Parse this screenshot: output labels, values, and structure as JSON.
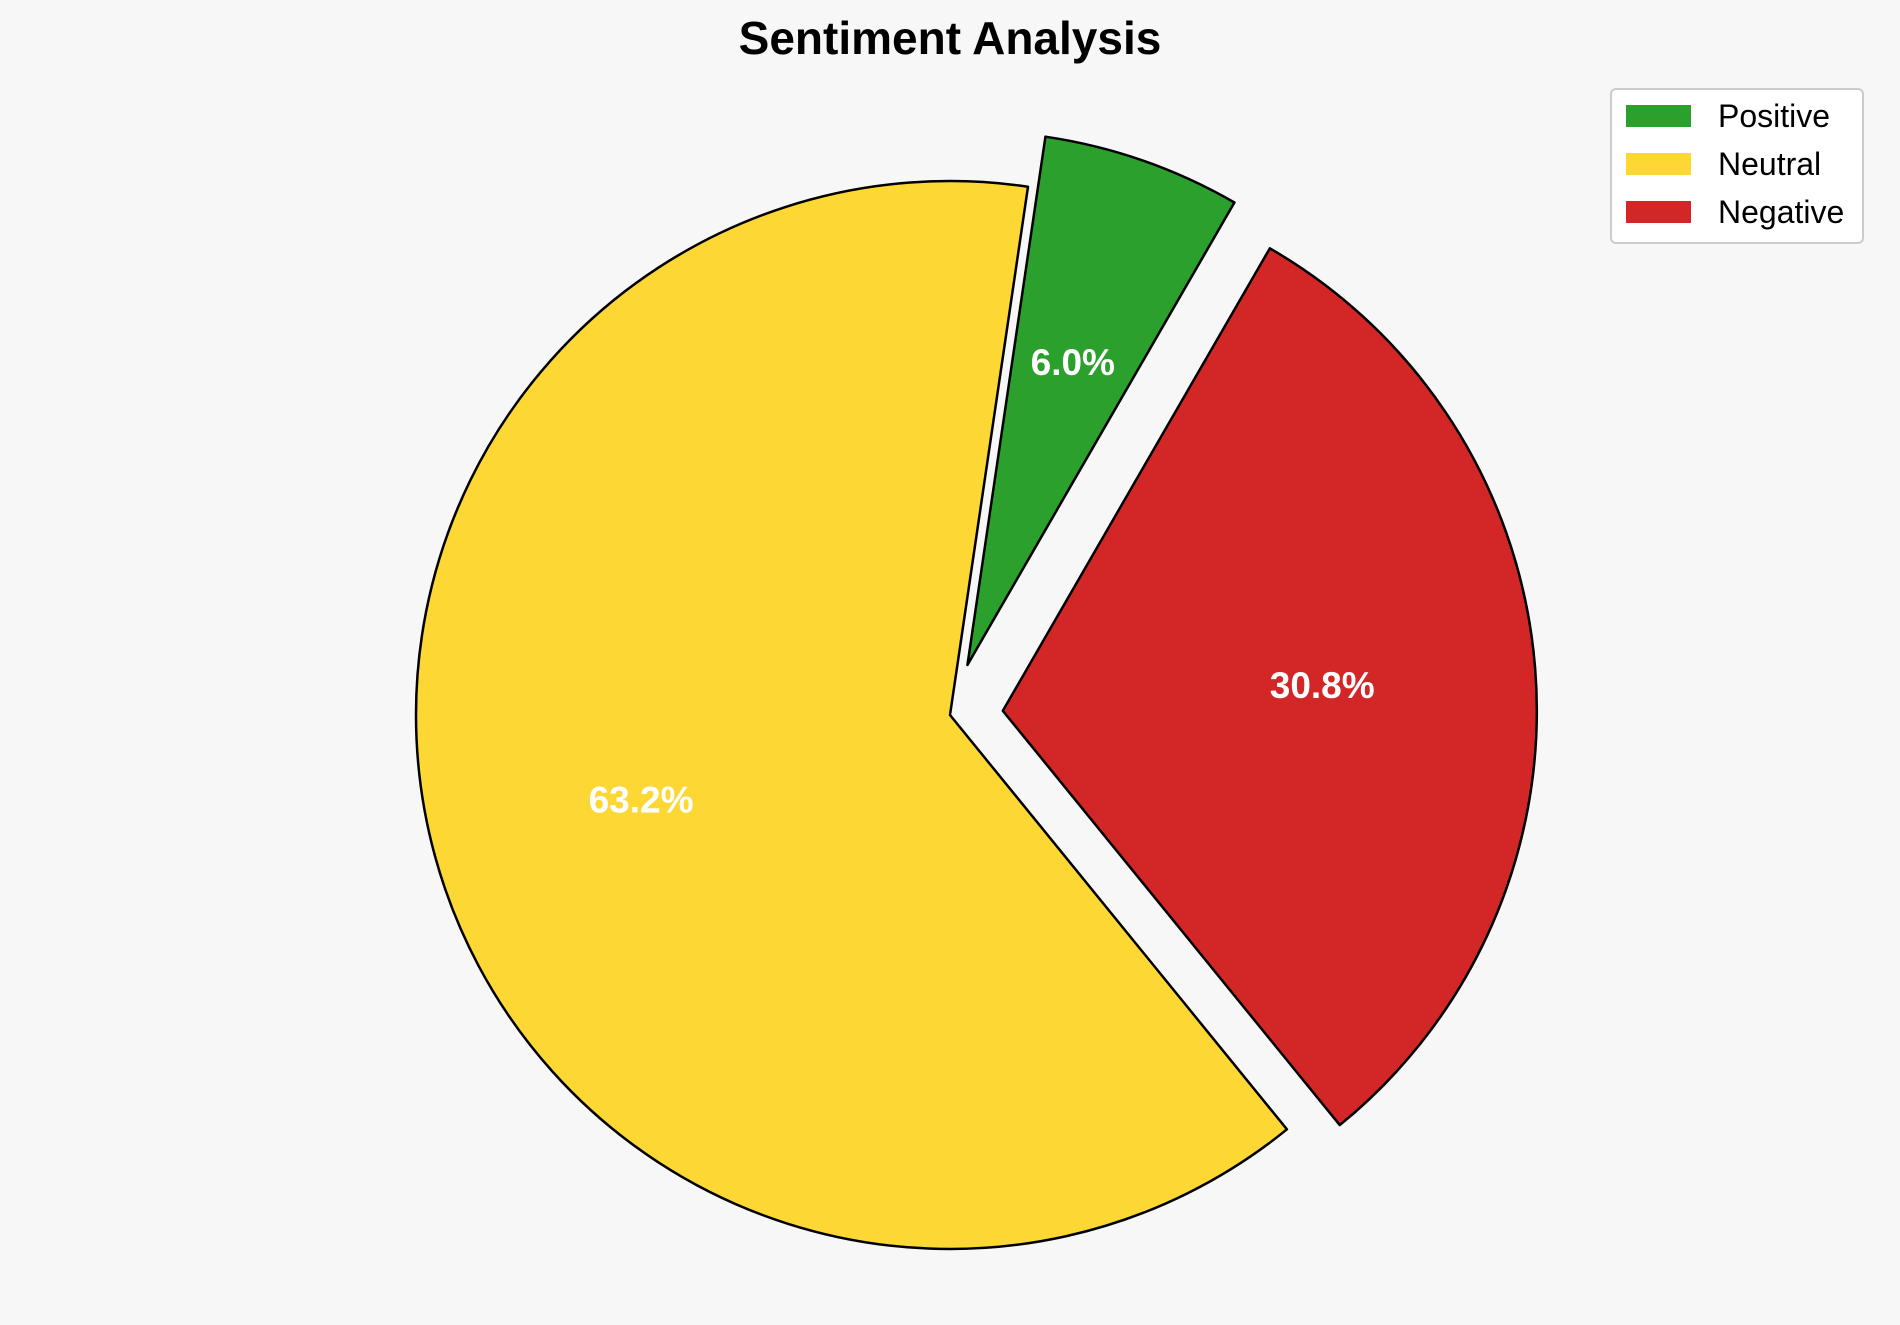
{
  "chart_data": {
    "type": "pie",
    "title": "Sentiment Analysis",
    "categories": [
      "Positive",
      "Neutral",
      "Negative"
    ],
    "values": [
      6.0,
      63.2,
      30.8
    ],
    "labels": [
      "6.0%",
      "63.2%",
      "30.8%"
    ],
    "colors": [
      "#2ca02c",
      "#fdd835",
      "#d32626"
    ],
    "exploded": [
      true,
      false,
      true
    ],
    "start_angle_deg": 60,
    "direction": "counterclockwise",
    "edge_color": "#000000",
    "legend": {
      "placement": "top-right",
      "entries": [
        "Positive",
        "Neutral",
        "Negative"
      ]
    }
  }
}
